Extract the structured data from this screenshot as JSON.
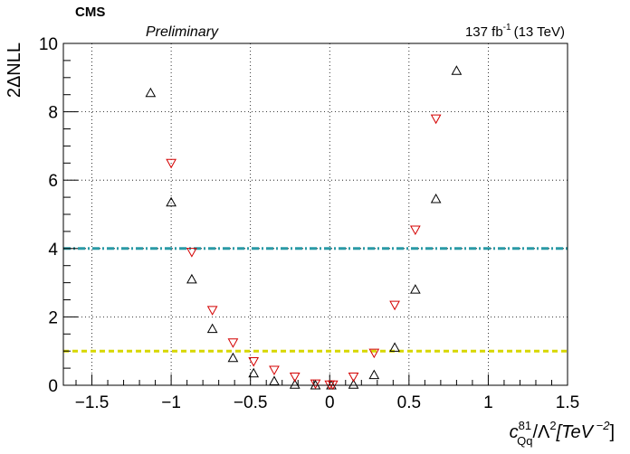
{
  "header": {
    "experiment": "CMS",
    "status": "Preliminary",
    "lumi_value": "137 fb",
    "lumi_exp": "-1",
    "lumi_energy": "(13 TeV)"
  },
  "axes": {
    "ylabel": "2ΔNLL",
    "xlabel": {
      "c": "c",
      "sup": "81",
      "sub": "Qq",
      "rest": "/Λ",
      "sq": "2",
      "unit": "[TeV",
      "unit_exp": " −2",
      "close": "]"
    }
  },
  "chart_data": {
    "type": "scatter",
    "xlim": [
      -1.68,
      1.5
    ],
    "ylim": [
      0,
      10
    ],
    "xticks": [
      -1.5,
      -1,
      -0.5,
      0,
      0.5,
      1,
      1.5
    ],
    "xtick_labels": [
      "−1.5",
      "−1",
      "−0.5",
      "0",
      "0.5",
      "1",
      "1.5"
    ],
    "yticks": [
      0,
      2,
      4,
      6,
      8,
      10
    ],
    "ytick_labels": [
      "0",
      "2",
      "4",
      "6",
      "8",
      "10"
    ],
    "grid": true,
    "reference_lines": [
      {
        "y": 4,
        "color": "#2a9aa6",
        "style": "dash-dot"
      },
      {
        "y": 1,
        "color": "#d7d700",
        "style": "dashed"
      }
    ],
    "series": [
      {
        "marker": "triangle-up",
        "color": "#000000",
        "x": [
          -1.13,
          -1.0,
          -0.87,
          -0.74,
          -0.61,
          -0.48,
          -0.35,
          -0.22,
          -0.09,
          0.01,
          0.15,
          0.28,
          0.41,
          0.54,
          0.67,
          0.8
        ],
        "y": [
          8.55,
          5.35,
          3.1,
          1.65,
          0.8,
          0.35,
          0.12,
          0.02,
          0.0,
          0.0,
          0.02,
          0.3,
          1.1,
          2.8,
          5.45,
          9.2
        ]
      },
      {
        "marker": "triangle-down",
        "color": "#d40000",
        "x": [
          -1.0,
          -0.87,
          -0.74,
          -0.61,
          -0.48,
          -0.35,
          -0.22,
          -0.09,
          0.0,
          0.02,
          0.15,
          0.28,
          0.41,
          0.54,
          0.67
        ],
        "y": [
          6.5,
          3.9,
          2.2,
          1.25,
          0.7,
          0.45,
          0.25,
          0.05,
          0.02,
          0.02,
          0.25,
          0.95,
          2.35,
          4.55,
          7.8
        ]
      }
    ]
  }
}
